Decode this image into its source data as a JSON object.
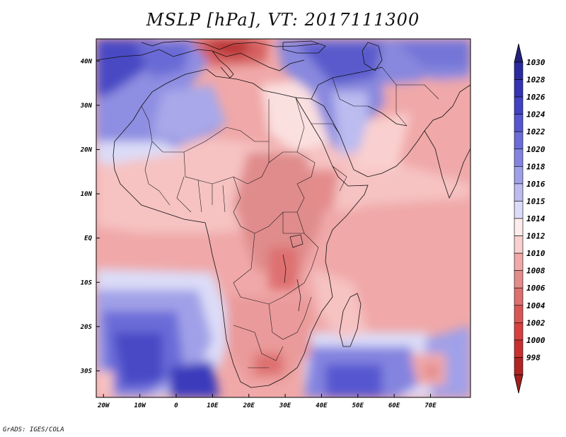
{
  "title": "MSLP [hPa], VT: 2017111300",
  "credit": "GrADS: IGES/COLA",
  "map": {
    "lon_range": [
      -22,
      81
    ],
    "lat_range": [
      -36,
      45
    ],
    "lat_ticks": [
      {
        "value": 40,
        "label": "40N"
      },
      {
        "value": 30,
        "label": "30N"
      },
      {
        "value": 20,
        "label": "20N"
      },
      {
        "value": 10,
        "label": "10N"
      },
      {
        "value": 0,
        "label": "EQ"
      },
      {
        "value": -10,
        "label": "10S"
      },
      {
        "value": -20,
        "label": "20S"
      },
      {
        "value": -30,
        "label": "30S"
      }
    ],
    "lon_ticks": [
      {
        "value": -20,
        "label": "20W"
      },
      {
        "value": -10,
        "label": "10W"
      },
      {
        "value": 0,
        "label": "0"
      },
      {
        "value": 10,
        "label": "10E"
      },
      {
        "value": 20,
        "label": "20E"
      },
      {
        "value": 30,
        "label": "30E"
      },
      {
        "value": 40,
        "label": "40E"
      },
      {
        "value": 50,
        "label": "50E"
      },
      {
        "value": 60,
        "label": "60E"
      },
      {
        "value": 70,
        "label": "70E"
      }
    ]
  },
  "colorbar": {
    "levels": [
      {
        "label": "1030",
        "color": "#2a2aa0"
      },
      {
        "label": "1028",
        "color": "#3434b4"
      },
      {
        "label": "1026",
        "color": "#4242c4"
      },
      {
        "label": "1024",
        "color": "#5656d0"
      },
      {
        "label": "1022",
        "color": "#6c6cd8"
      },
      {
        "label": "1020",
        "color": "#8484e0"
      },
      {
        "label": "1018",
        "color": "#a0a0e8"
      },
      {
        "label": "1016",
        "color": "#bcbcf0"
      },
      {
        "label": "1015",
        "color": "#dcdcf8"
      },
      {
        "label": "1014",
        "color": "#fdeceb"
      },
      {
        "label": "1012",
        "color": "#f9d0cf"
      },
      {
        "label": "1010",
        "color": "#f0a8a8"
      },
      {
        "label": "1008",
        "color": "#e48c8c"
      },
      {
        "label": "1006",
        "color": "#de7070"
      },
      {
        "label": "1004",
        "color": "#da5656"
      },
      {
        "label": "1002",
        "color": "#d84040"
      },
      {
        "label": "1000",
        "color": "#c83030"
      },
      {
        "label": "998",
        "color": "#b02424"
      }
    ],
    "top_color": "#22227a",
    "bottom_color": "#a31f1f"
  }
}
